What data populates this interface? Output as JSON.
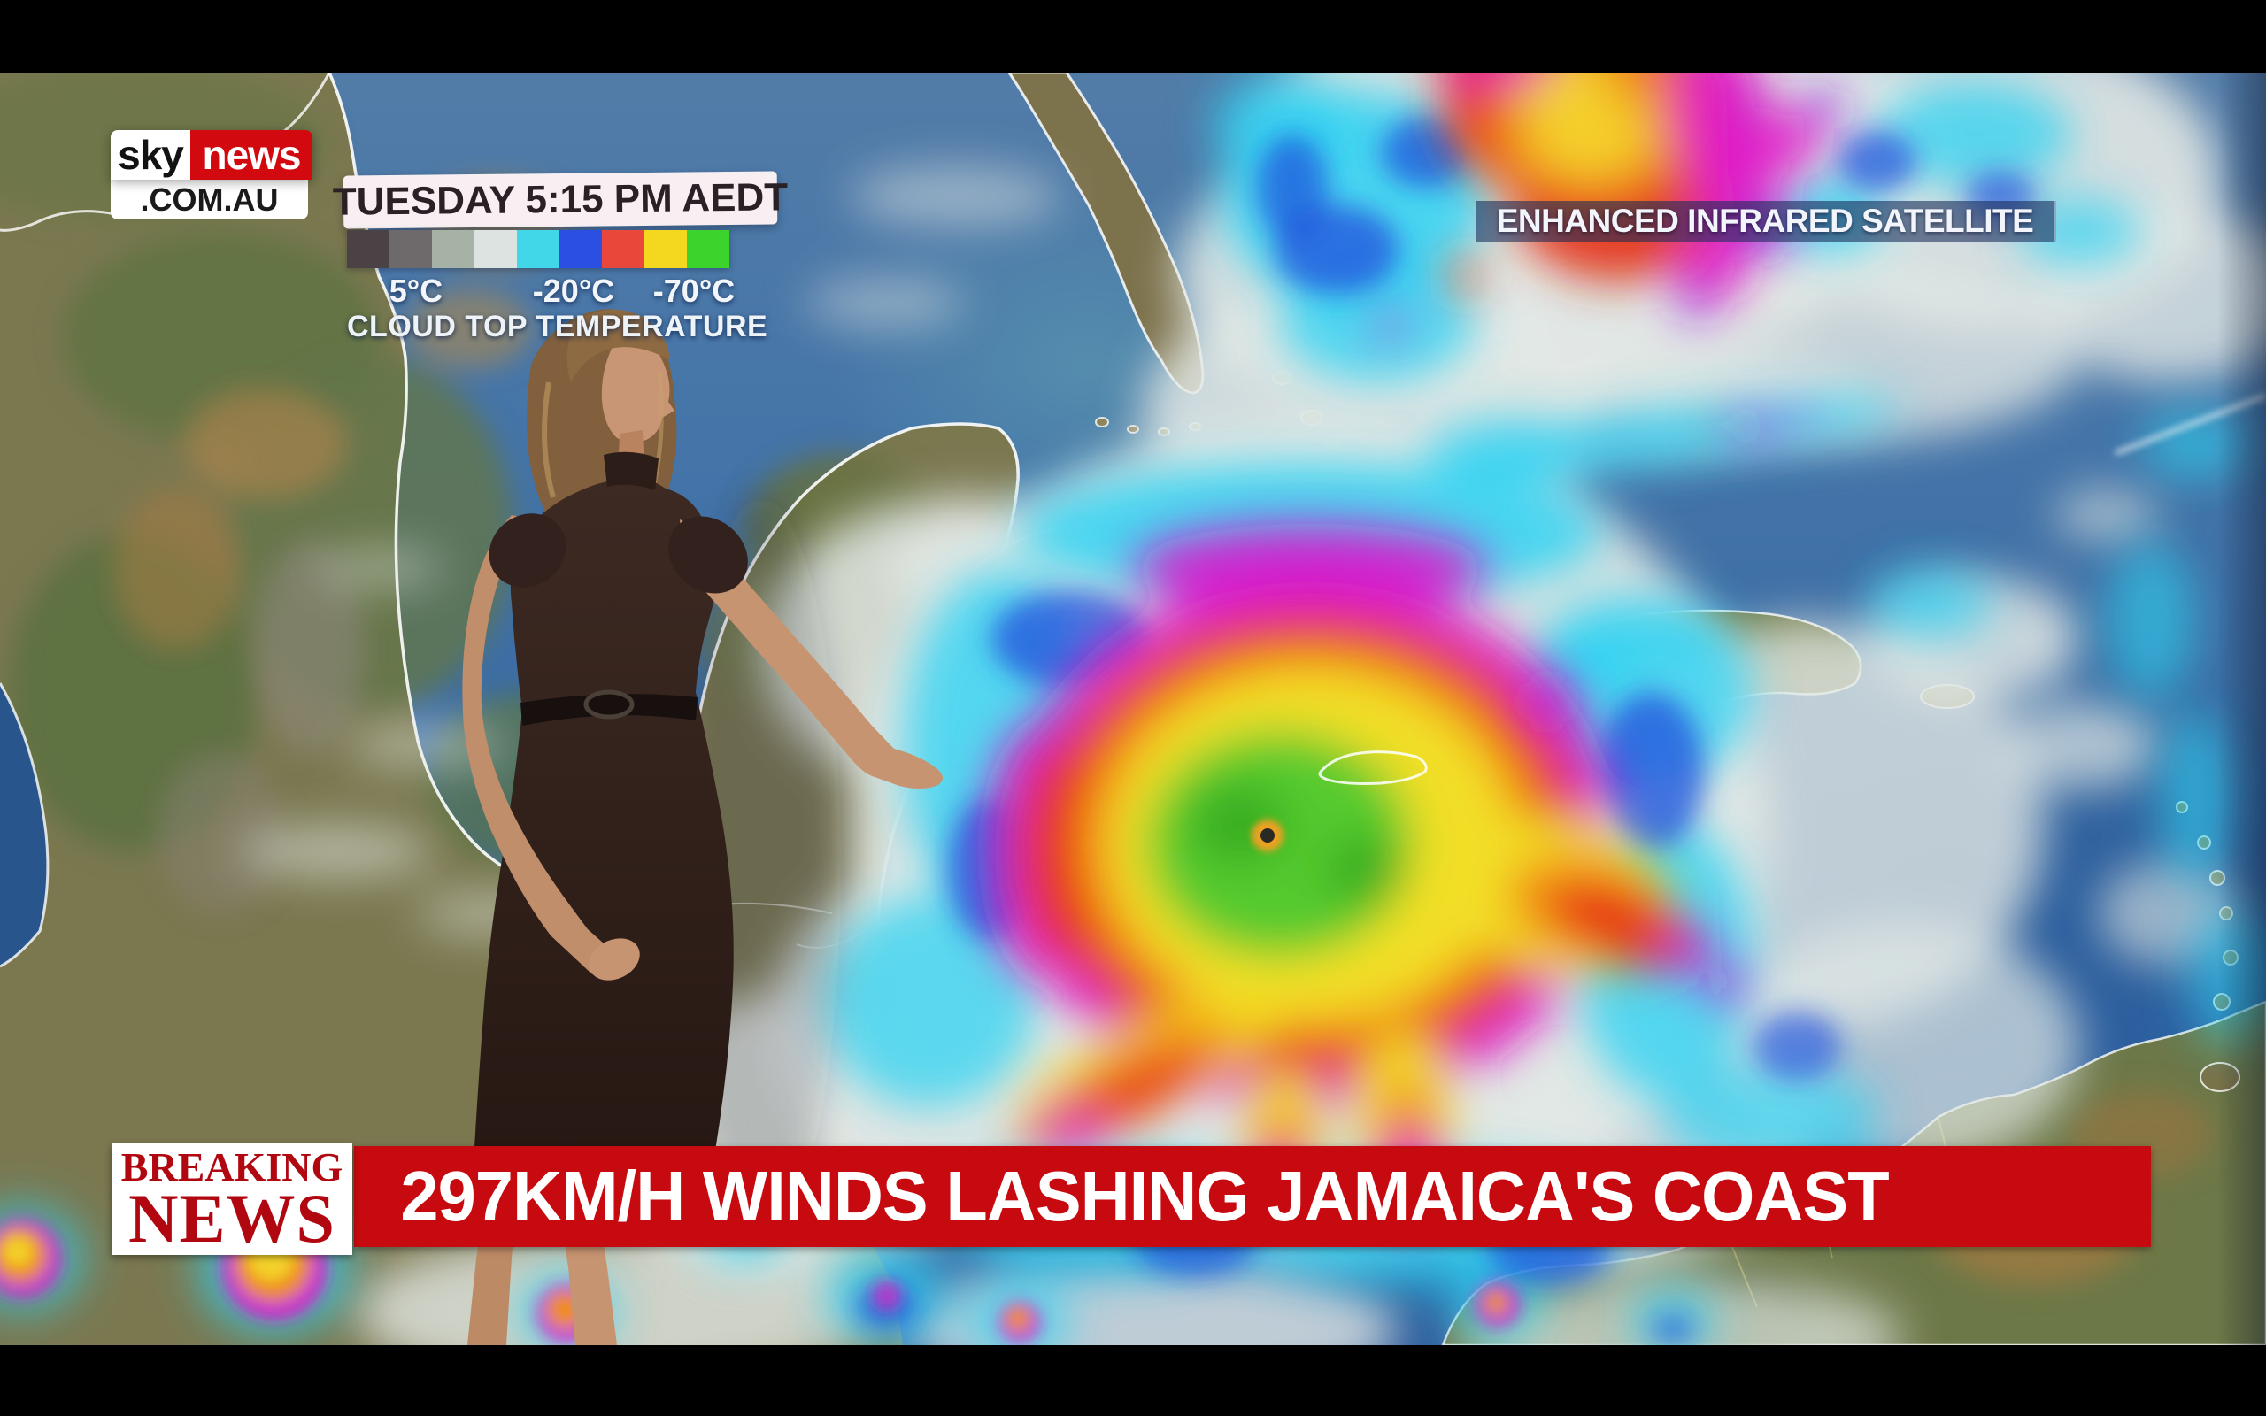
{
  "channel": {
    "name_sky": "sky",
    "name_news": "news",
    "domain": ".COM.AU"
  },
  "timestamp_banner": {
    "text": "TUESDAY 5:15 PM AEDT"
  },
  "temperature_scale": {
    "swatches": [
      "#4a4245",
      "#6e696a",
      "#a7b2a6",
      "#dde3e0",
      "#41d7e9",
      "#2b4fe2",
      "#e8473a",
      "#f4d71f",
      "#3bd32c"
    ],
    "labels": [
      "5°C",
      "-20°C",
      "-70°C"
    ],
    "caption": "CLOUD TOP TEMPERATURE"
  },
  "satellite_label": {
    "text": "ENHANCED INFRARED SATELLITE"
  },
  "breaking_news": {
    "tag_top": "BREAKING",
    "tag_bottom": "NEWS",
    "headline": "297KM/H WINDS LASHING JAMAICA'S COAST"
  },
  "colors": {
    "banner_red": "#c60a0f",
    "tag_text_red": "#b10710",
    "logo_news_red": "#d20a10",
    "hurricane_core_green": "#55ca2e",
    "hurricane_yellow": "#f2df25",
    "hurricane_red": "#e63318",
    "hurricane_magenta": "#df12c9",
    "cloud_cyan": "#2ed2f2"
  }
}
